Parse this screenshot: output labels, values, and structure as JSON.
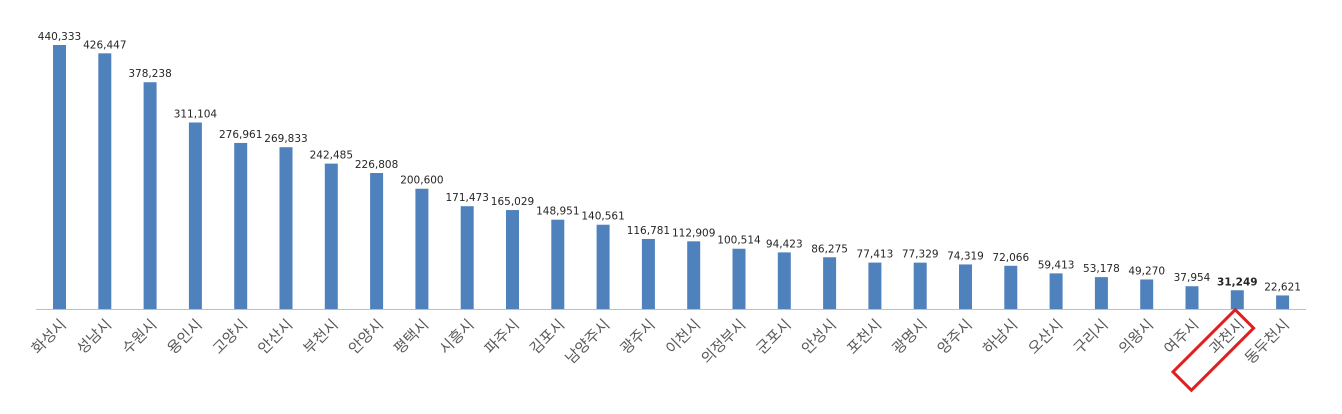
{
  "chart_data": {
    "type": "bar",
    "title": "",
    "xlabel": "",
    "ylabel": "",
    "ylim": [
      0,
      440333
    ],
    "grid": false,
    "legend": "none",
    "categories": [
      "화성시",
      "성남시",
      "수원시",
      "용인시",
      "고양시",
      "안산시",
      "부천시",
      "안양시",
      "평택시",
      "시흥시",
      "파주시",
      "김포시",
      "남양주시",
      "광주시",
      "이천시",
      "의정부시",
      "군포시",
      "안성시",
      "포천시",
      "광명시",
      "양주시",
      "하남시",
      "오산시",
      "구리시",
      "의왕시",
      "여주시",
      "과천시",
      "동두천시"
    ],
    "values": [
      440333,
      426447,
      378238,
      311104,
      276961,
      269833,
      242485,
      226808,
      200600,
      171473,
      165029,
      148951,
      140561,
      116781,
      112909,
      100514,
      94423,
      86275,
      77413,
      77329,
      74319,
      72066,
      59413,
      53178,
      49270,
      37954,
      31249,
      22621
    ],
    "value_labels": [
      "440,333",
      "426,447",
      "378,238",
      "311,104",
      "276,961",
      "269,833",
      "242,485",
      "226,808",
      "200,600",
      "171,473",
      "165,029",
      "148,951",
      "140,561",
      "116,781",
      "112,909",
      "100,514",
      "94,423",
      "86,275",
      "77,413",
      "77,329",
      "74,319",
      "72,066",
      "59,413",
      "53,178",
      "49,270",
      "37,954",
      "31,249",
      "22,621"
    ],
    "highlight": {
      "category": "과천시",
      "label_color": "#e02020",
      "box_color": "#e02020"
    },
    "colors": {
      "bar": "#4f81bd",
      "axis": "#bfbfbf"
    }
  }
}
